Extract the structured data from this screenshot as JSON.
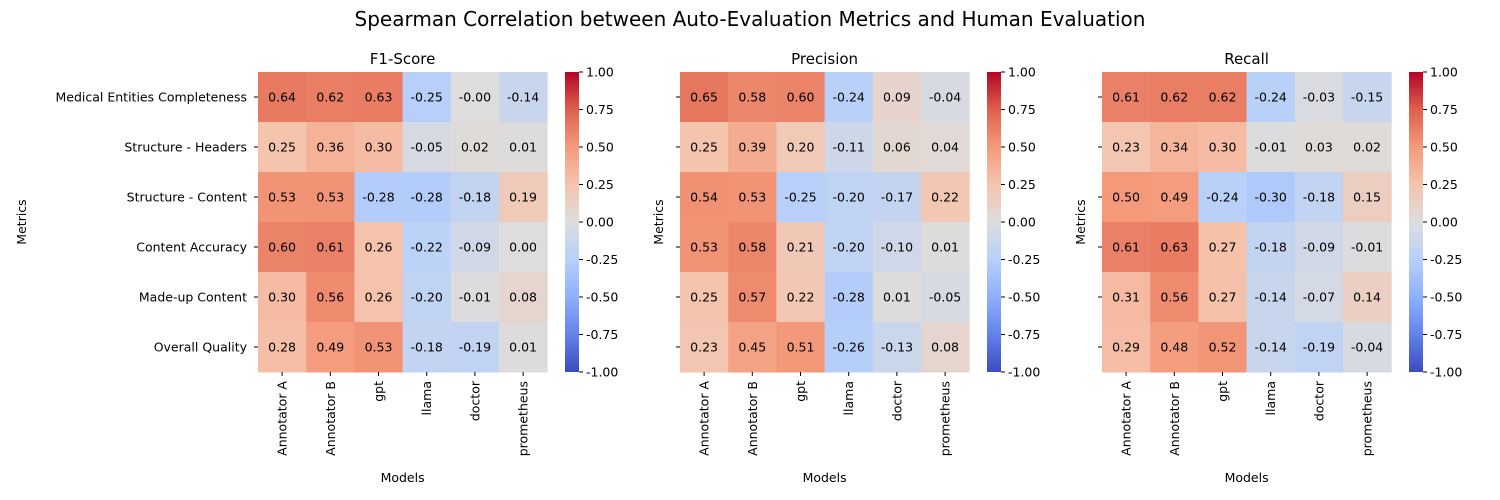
{
  "figure_title": "Spearman Correlation between Auto-Evaluation Metrics and Human Evaluation",
  "colors": {
    "colormap": "coolwarm",
    "low": "#3b4cc0",
    "mid": "#dddddd",
    "high": "#b40426"
  },
  "chart_data": [
    {
      "type": "heatmap",
      "title": "F1-Score",
      "xlabel": "Models",
      "ylabel": "Metrics",
      "x": [
        "Annotator A",
        "Annotator B",
        "gpt",
        "llama",
        "doctor",
        "prometheus"
      ],
      "y": [
        "Medical Entities Completeness",
        "Structure - Headers",
        "Structure - Content",
        "Content Accuracy",
        "Made-up Content",
        "Overall Quality"
      ],
      "values": [
        [
          0.64,
          0.62,
          0.63,
          -0.25,
          -0.0,
          -0.14
        ],
        [
          0.25,
          0.36,
          0.3,
          -0.05,
          0.02,
          0.01
        ],
        [
          0.53,
          0.53,
          -0.28,
          -0.28,
          -0.18,
          0.19
        ],
        [
          0.6,
          0.61,
          0.26,
          -0.22,
          -0.09,
          0.0
        ],
        [
          0.3,
          0.56,
          0.26,
          -0.2,
          -0.01,
          0.08
        ],
        [
          0.28,
          0.49,
          0.53,
          -0.18,
          -0.19,
          0.01
        ]
      ],
      "labels": [
        [
          "0.64",
          "0.62",
          "0.63",
          "-0.25",
          "-0.00",
          "-0.14"
        ],
        [
          "0.25",
          "0.36",
          "0.30",
          "-0.05",
          "0.02",
          "0.01"
        ],
        [
          "0.53",
          "0.53",
          "-0.28",
          "-0.28",
          "-0.18",
          "0.19"
        ],
        [
          "0.60",
          "0.61",
          "0.26",
          "-0.22",
          "-0.09",
          "0.00"
        ],
        [
          "0.30",
          "0.56",
          "0.26",
          "-0.20",
          "-0.01",
          "0.08"
        ],
        [
          "0.28",
          "0.49",
          "0.53",
          "-0.18",
          "-0.19",
          "0.01"
        ]
      ],
      "show_yticklabels": true,
      "vmin": -1.0,
      "vmax": 1.0,
      "colorbar_ticks": [
        "1.00",
        "0.75",
        "0.50",
        "0.25",
        "0.00",
        "-0.25",
        "-0.50",
        "-0.75",
        "-1.00"
      ]
    },
    {
      "type": "heatmap",
      "title": "Precision",
      "xlabel": "Models",
      "ylabel": "Metrics",
      "x": [
        "Annotator A",
        "Annotator B",
        "gpt",
        "llama",
        "doctor",
        "prometheus"
      ],
      "y": [
        "Medical Entities Completeness",
        "Structure - Headers",
        "Structure - Content",
        "Content Accuracy",
        "Made-up Content",
        "Overall Quality"
      ],
      "values": [
        [
          0.65,
          0.58,
          0.6,
          -0.24,
          0.09,
          -0.04
        ],
        [
          0.25,
          0.39,
          0.2,
          -0.11,
          0.06,
          0.04
        ],
        [
          0.54,
          0.53,
          -0.25,
          -0.2,
          -0.17,
          0.22
        ],
        [
          0.53,
          0.58,
          0.21,
          -0.2,
          -0.1,
          0.01
        ],
        [
          0.25,
          0.57,
          0.22,
          -0.28,
          0.01,
          -0.05
        ],
        [
          0.23,
          0.45,
          0.51,
          -0.26,
          -0.13,
          0.08
        ]
      ],
      "labels": [
        [
          "0.65",
          "0.58",
          "0.60",
          "-0.24",
          "0.09",
          "-0.04"
        ],
        [
          "0.25",
          "0.39",
          "0.20",
          "-0.11",
          "0.06",
          "0.04"
        ],
        [
          "0.54",
          "0.53",
          "-0.25",
          "-0.20",
          "-0.17",
          "0.22"
        ],
        [
          "0.53",
          "0.58",
          "0.21",
          "-0.20",
          "-0.10",
          "0.01"
        ],
        [
          "0.25",
          "0.57",
          "0.22",
          "-0.28",
          "0.01",
          "-0.05"
        ],
        [
          "0.23",
          "0.45",
          "0.51",
          "-0.26",
          "-0.13",
          "0.08"
        ]
      ],
      "show_yticklabels": false,
      "vmin": -1.0,
      "vmax": 1.0,
      "colorbar_ticks": [
        "1.00",
        "0.75",
        "0.50",
        "0.25",
        "0.00",
        "-0.25",
        "-0.50",
        "-0.75",
        "-1.00"
      ]
    },
    {
      "type": "heatmap",
      "title": "Recall",
      "xlabel": "Models",
      "ylabel": "Metrics",
      "x": [
        "Annotator A",
        "Annotator B",
        "gpt",
        "llama",
        "doctor",
        "prometheus"
      ],
      "y": [
        "Medical Entities Completeness",
        "Structure - Headers",
        "Structure - Content",
        "Content Accuracy",
        "Made-up Content",
        "Overall Quality"
      ],
      "values": [
        [
          0.61,
          0.62,
          0.62,
          -0.24,
          -0.03,
          -0.15
        ],
        [
          0.23,
          0.34,
          0.3,
          -0.01,
          0.03,
          0.02
        ],
        [
          0.5,
          0.49,
          -0.24,
          -0.3,
          -0.18,
          0.15
        ],
        [
          0.61,
          0.63,
          0.27,
          -0.18,
          -0.09,
          -0.01
        ],
        [
          0.31,
          0.56,
          0.27,
          -0.14,
          -0.07,
          0.14
        ],
        [
          0.29,
          0.48,
          0.52,
          -0.14,
          -0.19,
          -0.04
        ]
      ],
      "labels": [
        [
          "0.61",
          "0.62",
          "0.62",
          "-0.24",
          "-0.03",
          "-0.15"
        ],
        [
          "0.23",
          "0.34",
          "0.30",
          "-0.01",
          "0.03",
          "0.02"
        ],
        [
          "0.50",
          "0.49",
          "-0.24",
          "-0.30",
          "-0.18",
          "0.15"
        ],
        [
          "0.61",
          "0.63",
          "0.27",
          "-0.18",
          "-0.09",
          "-0.01"
        ],
        [
          "0.31",
          "0.56",
          "0.27",
          "-0.14",
          "-0.07",
          "0.14"
        ],
        [
          "0.29",
          "0.48",
          "0.52",
          "-0.14",
          "-0.19",
          "-0.04"
        ]
      ],
      "show_yticklabels": false,
      "vmin": -1.0,
      "vmax": 1.0,
      "colorbar_ticks": [
        "1.00",
        "0.75",
        "0.50",
        "0.25",
        "0.00",
        "-0.25",
        "-0.50",
        "-0.75",
        "-1.00"
      ]
    }
  ]
}
